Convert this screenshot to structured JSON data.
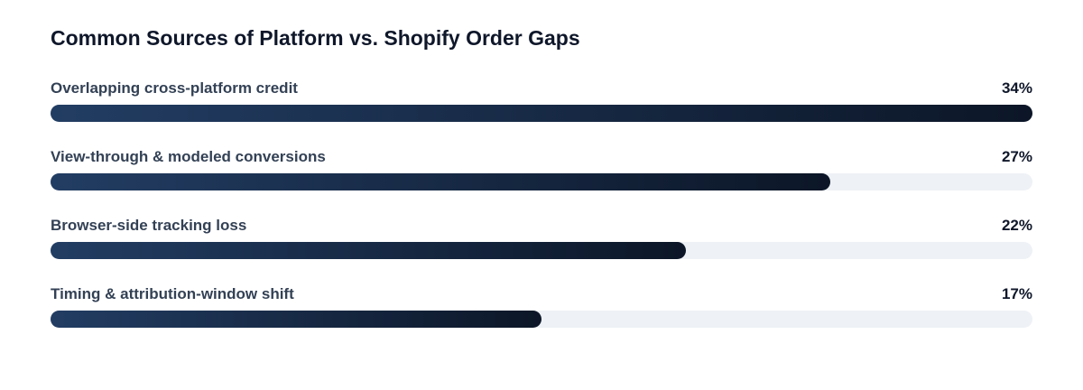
{
  "chart_data": {
    "type": "bar",
    "orientation": "horizontal",
    "title": "Common Sources of Platform vs. Shopify Order Gaps",
    "categories": [
      "Overlapping cross-platform credit",
      "View-through & modeled conversions",
      "Browser-side tracking loss",
      "Timing & attribution-window shift"
    ],
    "values": [
      34,
      27,
      22,
      17
    ],
    "value_labels": [
      "34%",
      "27%",
      "22%",
      "17%"
    ],
    "xlim": [
      0,
      34
    ],
    "colors": [
      "#223d63",
      "#0c1627"
    ],
    "track_color": "#eef1f5"
  }
}
